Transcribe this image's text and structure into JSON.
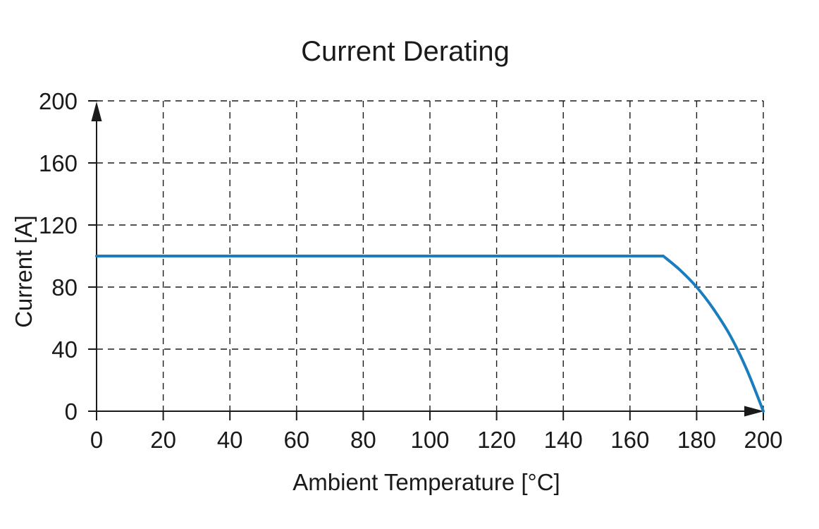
{
  "figure": {
    "background": "#ffffff"
  },
  "chart_data": {
    "type": "line",
    "title": "Current Derating",
    "xlabel": "Ambient Temperature [°C]",
    "ylabel": "Current [A]",
    "xlim": [
      0,
      200
    ],
    "ylim": [
      0,
      200
    ],
    "x_ticks": [
      0,
      20,
      40,
      60,
      80,
      100,
      120,
      140,
      160,
      180,
      200
    ],
    "y_ticks": [
      0,
      40,
      80,
      120,
      160,
      200
    ],
    "grid": "dashed",
    "legend": "none",
    "axis_arrows": true,
    "line_color": "#1a7dbe",
    "axis_color": "#1a1a1a",
    "grid_color": "#1a1a1a",
    "text_color": "#1a1a1a",
    "series": [
      {
        "points": [
          [
            0,
            100
          ],
          [
            170,
            100
          ],
          [
            175,
            91
          ],
          [
            180,
            80
          ],
          [
            185,
            66
          ],
          [
            190,
            49
          ],
          [
            195,
            27
          ],
          [
            200,
            0
          ]
        ]
      }
    ]
  }
}
